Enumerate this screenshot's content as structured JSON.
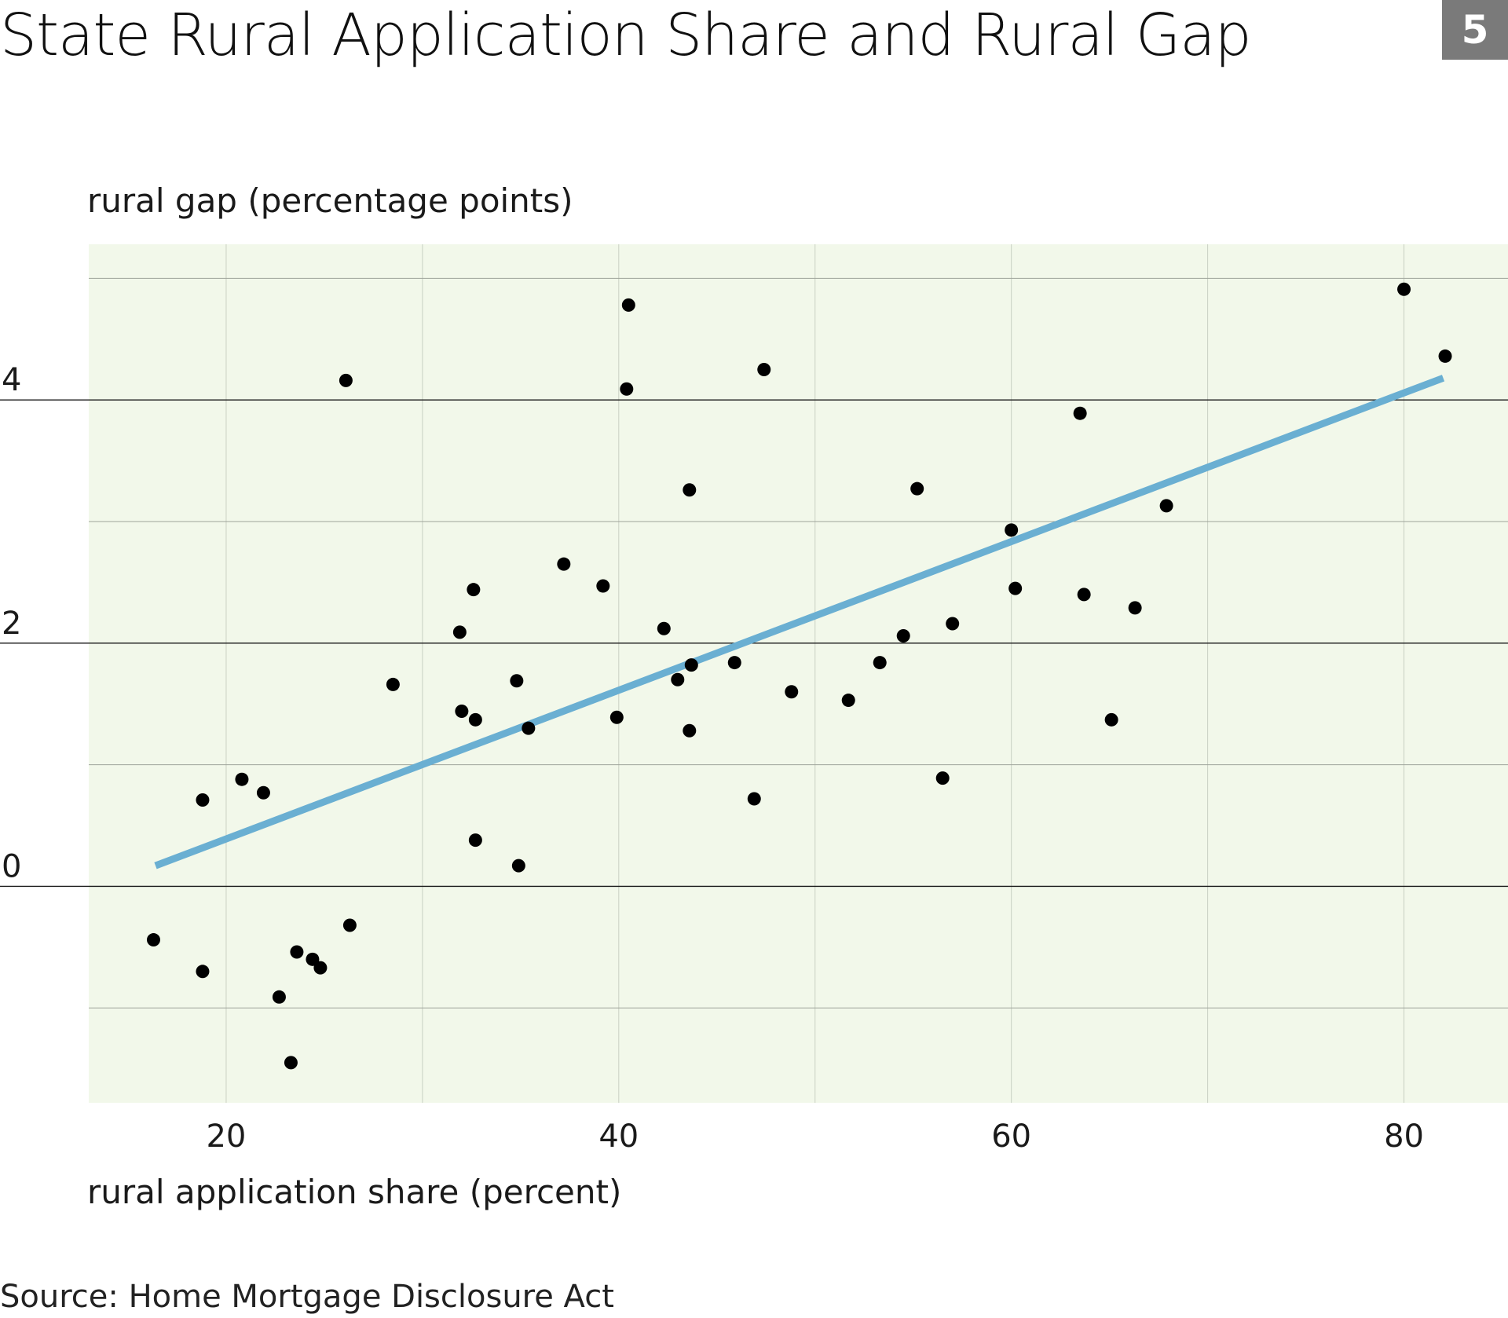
{
  "header": {
    "title": "State Rural Application Share and Rural Gap",
    "badge": "5"
  },
  "footer": {
    "source": "Source: Home Mortgage Disclosure Act"
  },
  "colors": {
    "plot_background": "#f2f8ea",
    "trend_line": "#6aafd2",
    "points": "#000000",
    "badge_background": "#7a7a7a"
  },
  "chart_data": {
    "type": "scatter",
    "xlabel": "rural application share (percent)",
    "ylabel": "rural gap (percentage points)",
    "xlim": [
      13,
      85.3
    ],
    "ylim": [
      -1.78,
      5.28
    ],
    "x_ticks": [
      20,
      40,
      60,
      80
    ],
    "y_ticks": [
      0,
      2,
      4
    ],
    "grid": true,
    "trend": {
      "x": [
        16.4,
        82.0
      ],
      "y": [
        0.17,
        4.18
      ]
    },
    "points": [
      {
        "x": 16.3,
        "y": -0.44
      },
      {
        "x": 18.8,
        "y": -0.7
      },
      {
        "x": 18.8,
        "y": 0.71
      },
      {
        "x": 20.8,
        "y": 0.88
      },
      {
        "x": 21.9,
        "y": 0.77
      },
      {
        "x": 22.7,
        "y": -0.91
      },
      {
        "x": 23.3,
        "y": -1.45
      },
      {
        "x": 23.6,
        "y": -0.54
      },
      {
        "x": 24.4,
        "y": -0.6
      },
      {
        "x": 24.8,
        "y": -0.67
      },
      {
        "x": 26.1,
        "y": 4.16
      },
      {
        "x": 26.3,
        "y": -0.32
      },
      {
        "x": 28.5,
        "y": 1.66
      },
      {
        "x": 31.9,
        "y": 2.09
      },
      {
        "x": 32.0,
        "y": 1.44
      },
      {
        "x": 32.6,
        "y": 2.44
      },
      {
        "x": 32.7,
        "y": 1.37
      },
      {
        "x": 32.7,
        "y": 0.38
      },
      {
        "x": 34.8,
        "y": 1.69
      },
      {
        "x": 34.9,
        "y": 0.17
      },
      {
        "x": 35.4,
        "y": 1.3
      },
      {
        "x": 37.2,
        "y": 2.65
      },
      {
        "x": 39.2,
        "y": 2.47
      },
      {
        "x": 39.9,
        "y": 1.39
      },
      {
        "x": 40.4,
        "y": 4.09
      },
      {
        "x": 40.5,
        "y": 4.78
      },
      {
        "x": 42.3,
        "y": 2.12
      },
      {
        "x": 43.0,
        "y": 1.7
      },
      {
        "x": 43.6,
        "y": 1.28
      },
      {
        "x": 43.6,
        "y": 3.26
      },
      {
        "x": 43.7,
        "y": 1.82
      },
      {
        "x": 45.9,
        "y": 1.84
      },
      {
        "x": 46.9,
        "y": 0.72
      },
      {
        "x": 47.4,
        "y": 4.25
      },
      {
        "x": 48.8,
        "y": 1.6
      },
      {
        "x": 51.7,
        "y": 1.53
      },
      {
        "x": 53.3,
        "y": 1.84
      },
      {
        "x": 54.5,
        "y": 2.06
      },
      {
        "x": 55.2,
        "y": 3.27
      },
      {
        "x": 56.5,
        "y": 0.89
      },
      {
        "x": 57.0,
        "y": 2.16
      },
      {
        "x": 60.0,
        "y": 2.93
      },
      {
        "x": 60.2,
        "y": 2.45
      },
      {
        "x": 63.5,
        "y": 3.89
      },
      {
        "x": 63.7,
        "y": 2.4
      },
      {
        "x": 65.1,
        "y": 1.37
      },
      {
        "x": 66.3,
        "y": 2.29
      },
      {
        "x": 67.9,
        "y": 3.13
      },
      {
        "x": 80.0,
        "y": 4.91
      },
      {
        "x": 82.1,
        "y": 4.36
      }
    ]
  }
}
